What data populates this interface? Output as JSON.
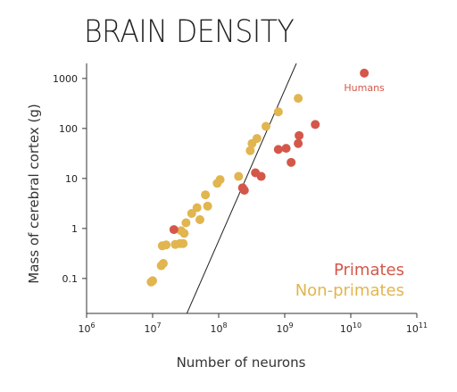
{
  "chart_data": {
    "type": "scatter",
    "title": "BRAIN DENSITY",
    "xlabel": "Number of neurons",
    "ylabel": "Mass of cerebral cortex (g)",
    "x_scale": "log",
    "y_scale": "log",
    "xlim": [
      1000000,
      100000000000
    ],
    "ylim": [
      0.02,
      2000
    ],
    "x_ticks": [
      {
        "value": 1000000,
        "base": "10",
        "exp": "6"
      },
      {
        "value": 10000000,
        "base": "10",
        "exp": "7"
      },
      {
        "value": 100000000,
        "base": "10",
        "exp": "8"
      },
      {
        "value": 1000000000,
        "base": "10",
        "exp": "9"
      },
      {
        "value": 10000000000,
        "base": "10",
        "exp": "10"
      },
      {
        "value": 100000000000,
        "base": "10",
        "exp": "11"
      }
    ],
    "y_ticks": [
      {
        "value": 0.1,
        "label": "0.1"
      },
      {
        "value": 1,
        "label": "1"
      },
      {
        "value": 10,
        "label": "10"
      },
      {
        "value": 100,
        "label": "100"
      },
      {
        "value": 1000,
        "label": "1000"
      }
    ],
    "grid": false,
    "legend_position": "bottom-right",
    "fit_line": [
      [
        33000000,
        0.02
      ],
      [
        1500000000,
        2000
      ]
    ],
    "annotations": [
      {
        "text": "Humans",
        "x": 16000000000,
        "y": 1280,
        "color": "#d4574a"
      }
    ],
    "series": [
      {
        "name": "Primates",
        "color": "#d4574a",
        "points": [
          [
            21000000,
            0.95
          ],
          [
            230000000,
            6.5
          ],
          [
            245000000,
            5.8
          ],
          [
            360000000,
            13
          ],
          [
            440000000,
            11
          ],
          [
            800000000,
            38
          ],
          [
            1050000000,
            40
          ],
          [
            1250000000,
            21
          ],
          [
            1600000000,
            50
          ],
          [
            1650000000,
            72
          ],
          [
            2900000000,
            120
          ],
          [
            16000000000,
            1280
          ]
        ]
      },
      {
        "name": "Non-primates",
        "color": "#e1b54f",
        "points": [
          [
            9500000,
            0.085
          ],
          [
            10000000,
            0.09
          ],
          [
            13500000,
            0.18
          ],
          [
            14500000,
            0.2
          ],
          [
            14000000,
            0.45
          ],
          [
            16000000,
            0.47
          ],
          [
            22000000,
            0.48
          ],
          [
            26000000,
            0.5
          ],
          [
            29000000,
            0.5
          ],
          [
            27000000,
            0.9
          ],
          [
            30000000,
            0.8
          ],
          [
            32000000,
            1.3
          ],
          [
            39000000,
            2.0
          ],
          [
            47000000,
            2.6
          ],
          [
            52000000,
            1.5
          ],
          [
            63000000,
            4.7
          ],
          [
            68000000,
            2.8
          ],
          [
            95000000,
            8.0
          ],
          [
            105000000,
            9.5
          ],
          [
            200000000,
            11
          ],
          [
            300000000,
            36
          ],
          [
            320000000,
            50
          ],
          [
            380000000,
            63
          ],
          [
            520000000,
            110
          ],
          [
            800000000,
            215
          ],
          [
            1600000000,
            400
          ]
        ]
      }
    ]
  }
}
